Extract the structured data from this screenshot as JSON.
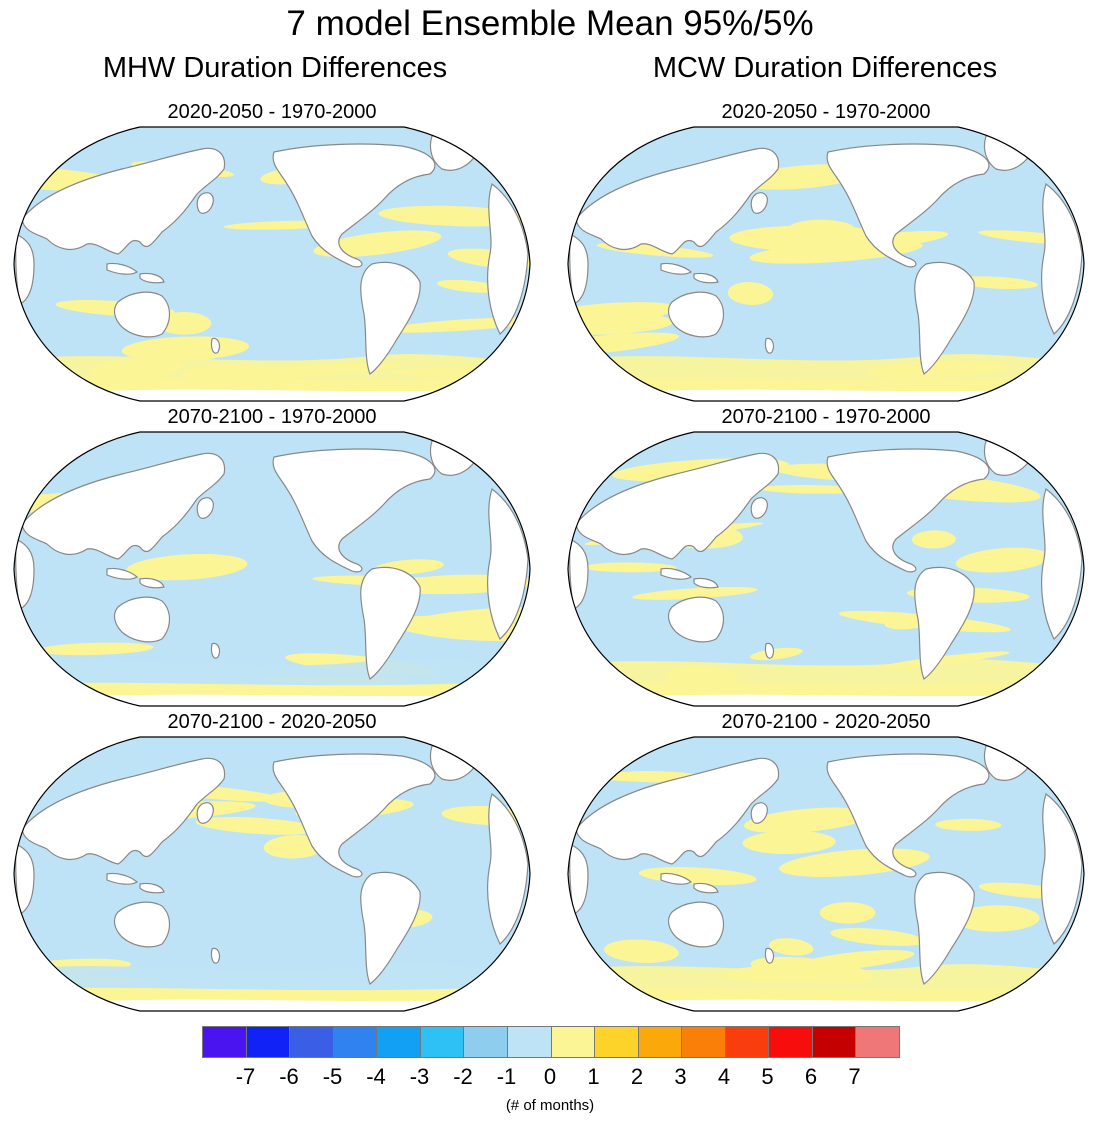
{
  "figure": {
    "title": "7 model Ensemble Mean 95%/5%",
    "columns": [
      {
        "title": "MHW Duration Differences"
      },
      {
        "title": "MCW Duration Differences"
      }
    ],
    "panels": [
      {
        "column": "MHW",
        "label": "2020-2050 - 1970-2000"
      },
      {
        "column": "MCW",
        "label": "2020-2050 - 1970-2000"
      },
      {
        "column": "MHW",
        "label": "2070-2100 - 1970-2000"
      },
      {
        "column": "MCW",
        "label": "2070-2100 - 1970-2000"
      },
      {
        "column": "MHW",
        "label": "2070-2100 - 2020-2050"
      },
      {
        "column": "MCW",
        "label": "2070-2100 - 2020-2050"
      }
    ],
    "projection": "Robinson, Pacific-centered",
    "legend": {
      "colors": [
        "#4a14f0",
        "#1022f5",
        "#3a5ee6",
        "#2f82f0",
        "#12a0f5",
        "#2ec1f5",
        "#8ecdee",
        "#bfe3f6",
        "#fcf596",
        "#fdd32a",
        "#fba90a",
        "#f97f08",
        "#fa3d0c",
        "#f80d0d",
        "#c50000",
        "#f07777"
      ],
      "ticks": [
        "-7",
        "-6",
        "-5",
        "-4",
        "-3",
        "-2",
        "-1",
        "0",
        "1",
        "2",
        "3",
        "4",
        "5",
        "6",
        "7"
      ],
      "units": "(# of months)"
    },
    "ocean_base_color": "#bfe3f6",
    "positive_color": "#fcf596",
    "land_color": "#ffffff"
  }
}
